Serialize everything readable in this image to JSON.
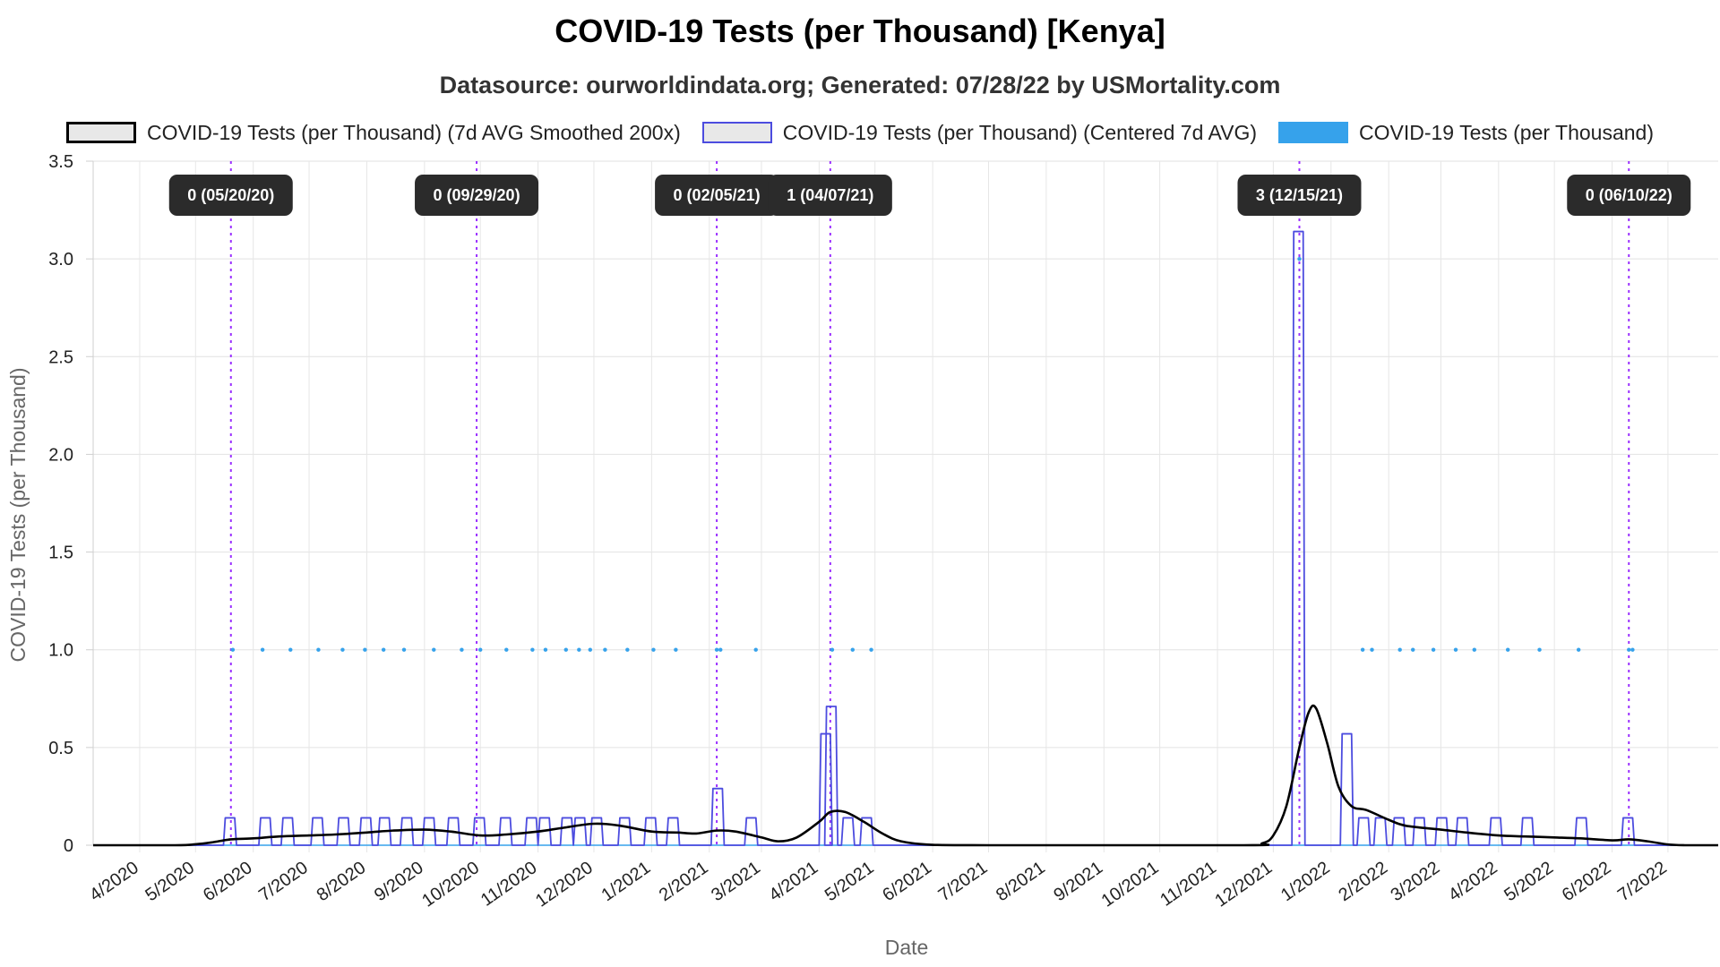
{
  "chart_data": {
    "type": "line",
    "title": "COVID-19 Tests (per Thousand) [Kenya]",
    "subtitle": "Datasource: ourworldindata.org; Generated: 07/28/22 by USMortality.com",
    "xlabel": "Date",
    "ylabel": "COVID-19 Tests (per Thousand)",
    "ylim": [
      0,
      3.5
    ],
    "xlim": [
      "2020-03-07",
      "2022-07-28"
    ],
    "grid": true,
    "legend_position": "top",
    "y_ticks": [
      "0",
      "0.5",
      "1.0",
      "1.5",
      "2.0",
      "2.5",
      "3.0",
      "3.5"
    ],
    "x_ticks": [
      {
        "date": "2020-04-01",
        "label": "4/2020"
      },
      {
        "date": "2020-05-01",
        "label": "5/2020"
      },
      {
        "date": "2020-06-01",
        "label": "6/2020"
      },
      {
        "date": "2020-07-01",
        "label": "7/2020"
      },
      {
        "date": "2020-08-01",
        "label": "8/2020"
      },
      {
        "date": "2020-09-01",
        "label": "9/2020"
      },
      {
        "date": "2020-10-01",
        "label": "10/2020"
      },
      {
        "date": "2020-11-01",
        "label": "11/2020"
      },
      {
        "date": "2020-12-01",
        "label": "12/2020"
      },
      {
        "date": "2021-01-01",
        "label": "1/2021"
      },
      {
        "date": "2021-02-01",
        "label": "2/2021"
      },
      {
        "date": "2021-03-01",
        "label": "3/2021"
      },
      {
        "date": "2021-04-01",
        "label": "4/2021"
      },
      {
        "date": "2021-05-01",
        "label": "5/2021"
      },
      {
        "date": "2021-06-01",
        "label": "6/2021"
      },
      {
        "date": "2021-07-01",
        "label": "7/2021"
      },
      {
        "date": "2021-08-01",
        "label": "8/2021"
      },
      {
        "date": "2021-09-01",
        "label": "9/2021"
      },
      {
        "date": "2021-10-01",
        "label": "10/2021"
      },
      {
        "date": "2021-11-01",
        "label": "11/2021"
      },
      {
        "date": "2021-12-01",
        "label": "12/2021"
      },
      {
        "date": "2022-01-01",
        "label": "1/2022"
      },
      {
        "date": "2022-02-01",
        "label": "2/2022"
      },
      {
        "date": "2022-03-01",
        "label": "3/2022"
      },
      {
        "date": "2022-04-01",
        "label": "4/2022"
      },
      {
        "date": "2022-05-01",
        "label": "5/2022"
      },
      {
        "date": "2022-06-01",
        "label": "6/2022"
      },
      {
        "date": "2022-07-01",
        "label": "7/2022"
      }
    ],
    "annotations": [
      {
        "date": "2020-05-20",
        "label": "0 (05/20/20)"
      },
      {
        "date": "2020-09-29",
        "label": "0 (09/29/20)"
      },
      {
        "date": "2021-02-05",
        "label": "0 (02/05/21)"
      },
      {
        "date": "2021-04-07",
        "label": "1 (04/07/21)"
      },
      {
        "date": "2021-12-15",
        "label": "3 (12/15/21)"
      },
      {
        "date": "2022-06-10",
        "label": "0 (06/10/22)"
      }
    ],
    "series": [
      {
        "name": "COVID-19 Tests (per Thousand) (7d AVG Smoothed 200x)",
        "color": "#000000",
        "points": [
          [
            "2020-03-07",
            0
          ],
          [
            "2020-04-20",
            0
          ],
          [
            "2020-05-01",
            0.005
          ],
          [
            "2020-05-10",
            0.015
          ],
          [
            "2020-05-20",
            0.03
          ],
          [
            "2020-06-01",
            0.035
          ],
          [
            "2020-06-15",
            0.045
          ],
          [
            "2020-07-01",
            0.05
          ],
          [
            "2020-07-15",
            0.055
          ],
          [
            "2020-08-01",
            0.065
          ],
          [
            "2020-08-15",
            0.075
          ],
          [
            "2020-09-01",
            0.08
          ],
          [
            "2020-09-15",
            0.07
          ],
          [
            "2020-10-01",
            0.05
          ],
          [
            "2020-10-15",
            0.055
          ],
          [
            "2020-11-01",
            0.07
          ],
          [
            "2020-11-15",
            0.09
          ],
          [
            "2020-12-01",
            0.11
          ],
          [
            "2020-12-15",
            0.1
          ],
          [
            "2021-01-01",
            0.07
          ],
          [
            "2021-01-15",
            0.065
          ],
          [
            "2021-01-25",
            0.06
          ],
          [
            "2021-02-05",
            0.075
          ],
          [
            "2021-02-15",
            0.07
          ],
          [
            "2021-03-01",
            0.04
          ],
          [
            "2021-03-10",
            0.02
          ],
          [
            "2021-03-20",
            0.04
          ],
          [
            "2021-04-01",
            0.12
          ],
          [
            "2021-04-07",
            0.17
          ],
          [
            "2021-04-15",
            0.17
          ],
          [
            "2021-04-25",
            0.12
          ],
          [
            "2021-05-05",
            0.06
          ],
          [
            "2021-05-15",
            0.02
          ],
          [
            "2021-06-01",
            0.002
          ],
          [
            "2021-07-01",
            0
          ],
          [
            "2021-11-15",
            0
          ],
          [
            "2021-11-25",
            0.01
          ],
          [
            "2021-12-01",
            0.05
          ],
          [
            "2021-12-08",
            0.2
          ],
          [
            "2021-12-15",
            0.5
          ],
          [
            "2021-12-20",
            0.68
          ],
          [
            "2021-12-24",
            0.7
          ],
          [
            "2021-12-30",
            0.52
          ],
          [
            "2022-01-05",
            0.3
          ],
          [
            "2022-01-12",
            0.2
          ],
          [
            "2022-01-20",
            0.18
          ],
          [
            "2022-02-01",
            0.13
          ],
          [
            "2022-02-10",
            0.1
          ],
          [
            "2022-03-01",
            0.08
          ],
          [
            "2022-03-15",
            0.065
          ],
          [
            "2022-04-01",
            0.05
          ],
          [
            "2022-04-15",
            0.045
          ],
          [
            "2022-05-01",
            0.04
          ],
          [
            "2022-05-15",
            0.035
          ],
          [
            "2022-06-01",
            0.025
          ],
          [
            "2022-06-10",
            0.03
          ],
          [
            "2022-06-20",
            0.02
          ],
          [
            "2022-07-01",
            0.004
          ],
          [
            "2022-07-10",
            0
          ],
          [
            "2022-07-28",
            0
          ]
        ]
      },
      {
        "name": "COVID-19 Tests (per Thousand) (Centered 7d AVG)",
        "color": "#4c4cdf",
        "pulses": [
          [
            "2020-05-20",
            0.14
          ],
          [
            "2020-06-08",
            0.14
          ],
          [
            "2020-06-20",
            0.14
          ],
          [
            "2020-07-06",
            0.14
          ],
          [
            "2020-07-20",
            0.14
          ],
          [
            "2020-08-01",
            0.14
          ],
          [
            "2020-08-11",
            0.14
          ],
          [
            "2020-08-23",
            0.14
          ],
          [
            "2020-09-04",
            0.14
          ],
          [
            "2020-09-17",
            0.14
          ],
          [
            "2020-10-01",
            0.14
          ],
          [
            "2020-10-15",
            0.14
          ],
          [
            "2020-10-29",
            0.14
          ],
          [
            "2020-11-05",
            0.14
          ],
          [
            "2020-11-17",
            0.14
          ],
          [
            "2020-11-24",
            0.14
          ],
          [
            "2020-12-03",
            0.14
          ],
          [
            "2020-12-18",
            0.14
          ],
          [
            "2021-01-01",
            0.14
          ],
          [
            "2021-01-13",
            0.14
          ],
          [
            "2021-02-06",
            0.29
          ],
          [
            "2021-02-24",
            0.14
          ],
          [
            "2021-04-05",
            0.57
          ],
          [
            "2021-04-08",
            0.71
          ],
          [
            "2021-04-17",
            0.14
          ],
          [
            "2021-04-27",
            0.14
          ],
          [
            "2021-12-15",
            3.14
          ],
          [
            "2022-01-10",
            0.57
          ],
          [
            "2022-01-19",
            0.14
          ],
          [
            "2022-01-28",
            0.14
          ],
          [
            "2022-02-07",
            0.14
          ],
          [
            "2022-02-18",
            0.14
          ],
          [
            "2022-03-02",
            0.14
          ],
          [
            "2022-03-13",
            0.14
          ],
          [
            "2022-03-31",
            0.14
          ],
          [
            "2022-04-17",
            0.14
          ],
          [
            "2022-05-16",
            0.14
          ],
          [
            "2022-06-10",
            0.14
          ]
        ]
      },
      {
        "name": "COVID-19 Tests (per Thousand)",
        "color": "#36a2eb",
        "points": [
          [
            "2020-05-21",
            1
          ],
          [
            "2020-06-06",
            1
          ],
          [
            "2020-06-21",
            1
          ],
          [
            "2020-07-06",
            1
          ],
          [
            "2020-07-19",
            1
          ],
          [
            "2020-07-31",
            1
          ],
          [
            "2020-08-10",
            1
          ],
          [
            "2020-08-21",
            1
          ],
          [
            "2020-09-06",
            1
          ],
          [
            "2020-09-21",
            1
          ],
          [
            "2020-10-01",
            1
          ],
          [
            "2020-10-15",
            1
          ],
          [
            "2020-10-29",
            1
          ],
          [
            "2020-11-05",
            1
          ],
          [
            "2020-11-16",
            1
          ],
          [
            "2020-11-23",
            1
          ],
          [
            "2020-11-29",
            1
          ],
          [
            "2020-12-07",
            1
          ],
          [
            "2020-12-19",
            1
          ],
          [
            "2021-01-02",
            1
          ],
          [
            "2021-01-14",
            1
          ],
          [
            "2021-02-05",
            1
          ],
          [
            "2021-02-07",
            1
          ],
          [
            "2021-02-26",
            1
          ],
          [
            "2021-04-08",
            1
          ],
          [
            "2021-04-19",
            1
          ],
          [
            "2021-04-29",
            1
          ],
          [
            "2021-12-15",
            3
          ],
          [
            "2022-01-18",
            1
          ],
          [
            "2022-01-23",
            1
          ],
          [
            "2022-02-07",
            1
          ],
          [
            "2022-02-14",
            1
          ],
          [
            "2022-02-25",
            1
          ],
          [
            "2022-03-09",
            1
          ],
          [
            "2022-03-19",
            1
          ],
          [
            "2022-04-06",
            1
          ],
          [
            "2022-04-23",
            1
          ],
          [
            "2022-05-14",
            1
          ],
          [
            "2022-06-10",
            1
          ],
          [
            "2022-06-12",
            1
          ]
        ]
      }
    ]
  }
}
